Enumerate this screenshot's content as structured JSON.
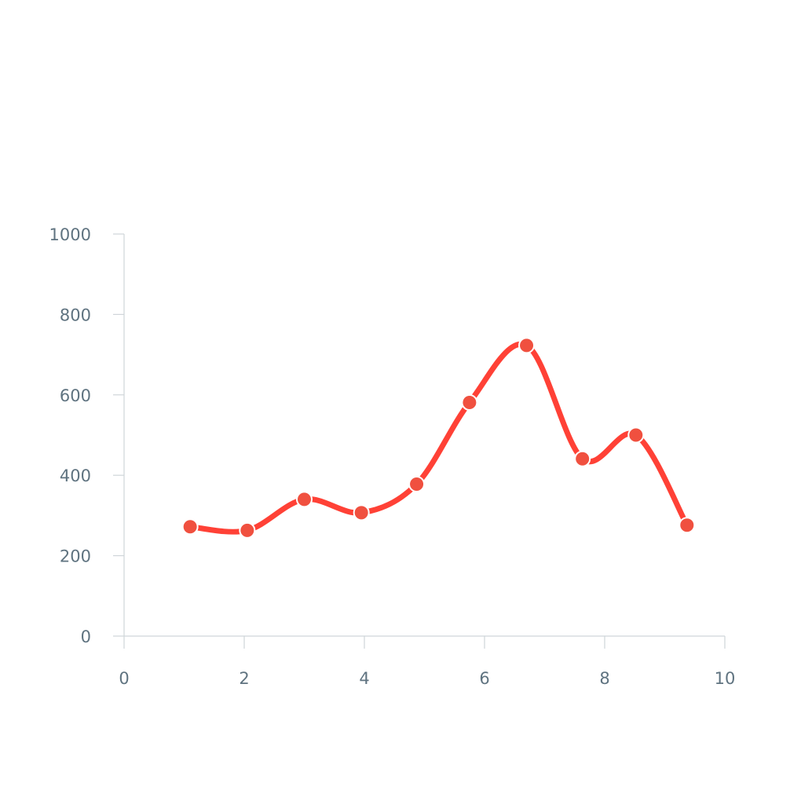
{
  "chart_data": {
    "type": "line",
    "title": "",
    "xlabel": "",
    "ylabel": "",
    "xlim": [
      0,
      10
    ],
    "ylim": [
      0,
      1000
    ],
    "x_ticks": [
      0,
      2,
      4,
      6,
      8,
      10
    ],
    "y_ticks": [
      0,
      200,
      400,
      600,
      800,
      1000
    ],
    "x_tick_labels": [
      "0",
      "2",
      "4",
      "6",
      "8",
      "10"
    ],
    "y_tick_labels": [
      "0",
      "200",
      "400",
      "600",
      "800",
      "1000"
    ],
    "grid": false,
    "legend": "none",
    "smooth": true,
    "markers": true,
    "series": [
      {
        "color": "#ff4136",
        "marker_color": "#f0503f",
        "x": [
          1.1,
          2.05,
          3.0,
          3.95,
          4.87,
          5.75,
          6.7,
          7.63,
          8.52,
          9.37
        ],
        "y": [
          272,
          263,
          340,
          307,
          378,
          581,
          723,
          441,
          500,
          276
        ]
      }
    ]
  }
}
